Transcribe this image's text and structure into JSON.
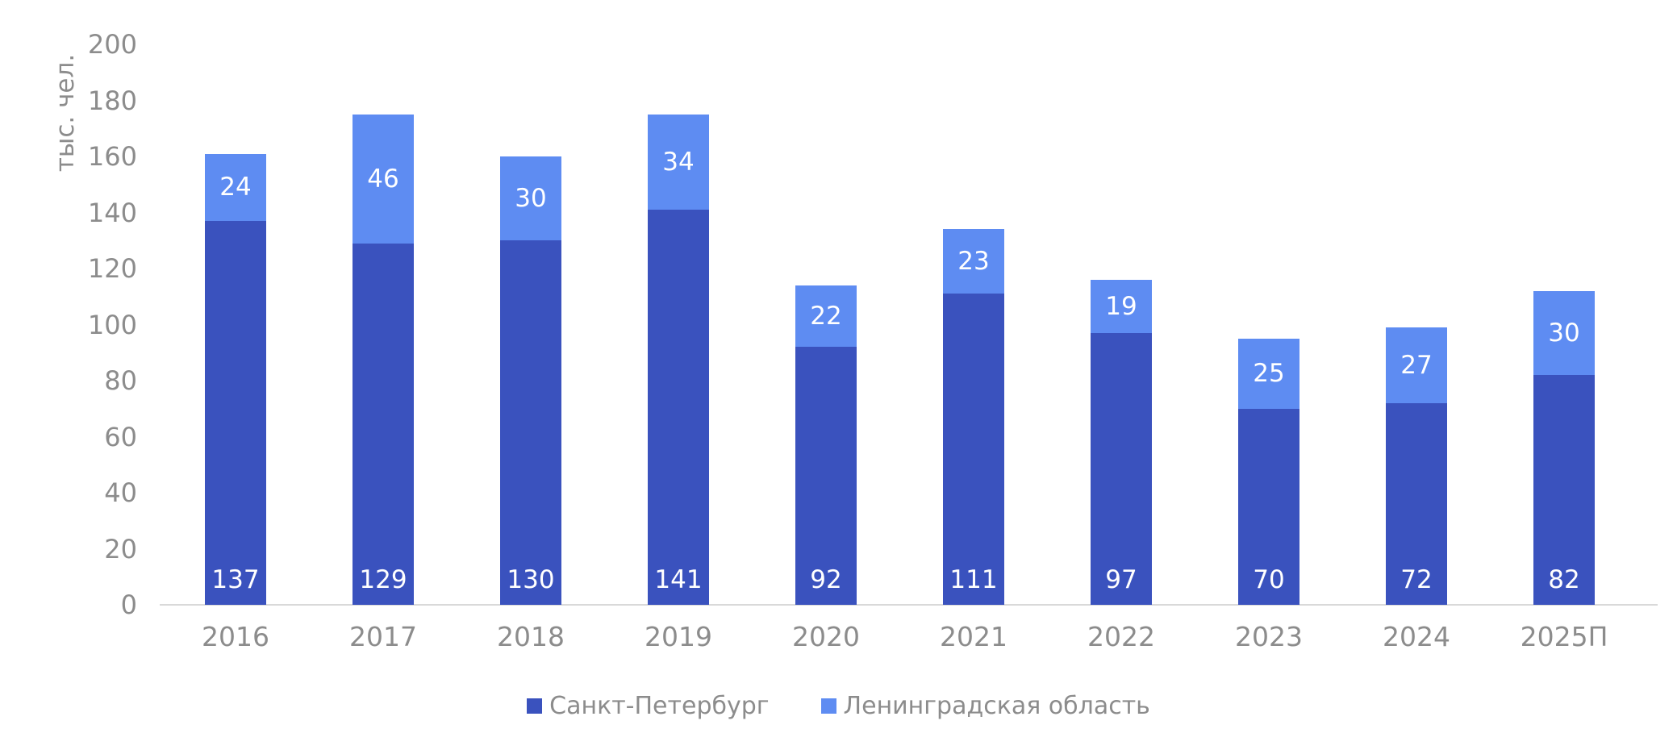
{
  "chart_data": {
    "type": "bar",
    "stacked": true,
    "title": "",
    "ylabel": "тыс. чел.",
    "xlabel": "",
    "ylim": [
      0,
      200
    ],
    "ytick_step": 20,
    "grid": false,
    "legend_position": "bottom",
    "categories": [
      "2016",
      "2017",
      "2018",
      "2019",
      "2020",
      "2021",
      "2022",
      "2023",
      "2024",
      "2025П"
    ],
    "series": [
      {
        "name": "Санкт-Петербург",
        "color": "#3a52be",
        "label_color": "#ffffff",
        "label_placement": "inside-base",
        "values": [
          137,
          129,
          130,
          141,
          92,
          111,
          97,
          70,
          72,
          82
        ]
      },
      {
        "name": "Ленинградская область",
        "color": "#5e8cf2",
        "label_color": "#ffffff",
        "label_placement": "inside-center",
        "values": [
          24,
          46,
          30,
          34,
          22,
          23,
          19,
          25,
          27,
          30
        ]
      }
    ]
  },
  "style": {
    "background": "#ffffff",
    "axis_line_color": "#d9d9d9",
    "axis_text_color": "#8c8c8c"
  }
}
